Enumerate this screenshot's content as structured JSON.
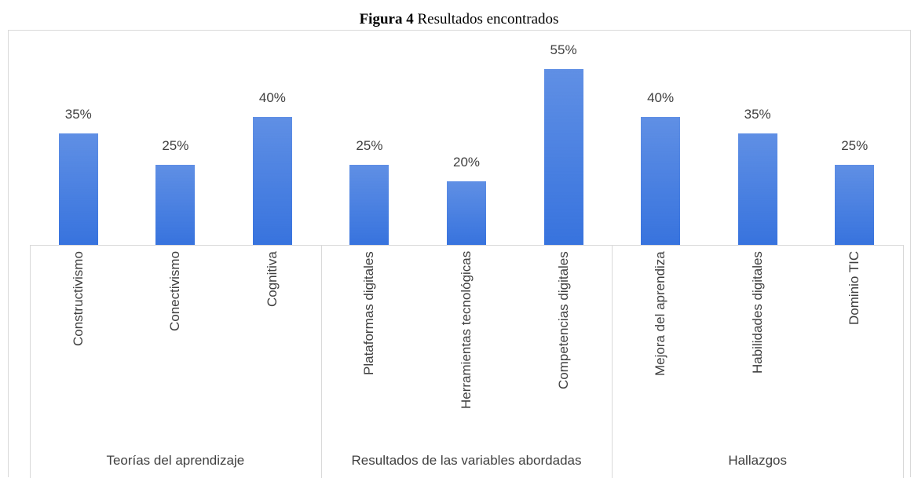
{
  "chart_data": {
    "type": "bar",
    "title_label": "Figura 4",
    "title": "Resultados encontrados",
    "color": "#4472c4",
    "groups": [
      {
        "name": "Teorías del aprendizaje",
        "categories": [
          "Constructivismo",
          "Conectivismo",
          "Cognitiva"
        ],
        "values": [
          35,
          25,
          40
        ],
        "value_labels": [
          "35%",
          "25%",
          "40%"
        ]
      },
      {
        "name": "Resultados de las variables abordadas",
        "categories": [
          "Plataformas digitales",
          "Herramientas tecnológicas",
          "Competencias digitales"
        ],
        "values": [
          25,
          20,
          55
        ],
        "value_labels": [
          "25%",
          "20%",
          "55%"
        ]
      },
      {
        "name": "Hallazgos",
        "categories": [
          "Mejora del aprendiza",
          "Habilidades digitales",
          "Dominio TIC"
        ],
        "values": [
          40,
          35,
          25
        ],
        "value_labels": [
          "40%",
          "35%",
          "25%"
        ]
      }
    ]
  }
}
